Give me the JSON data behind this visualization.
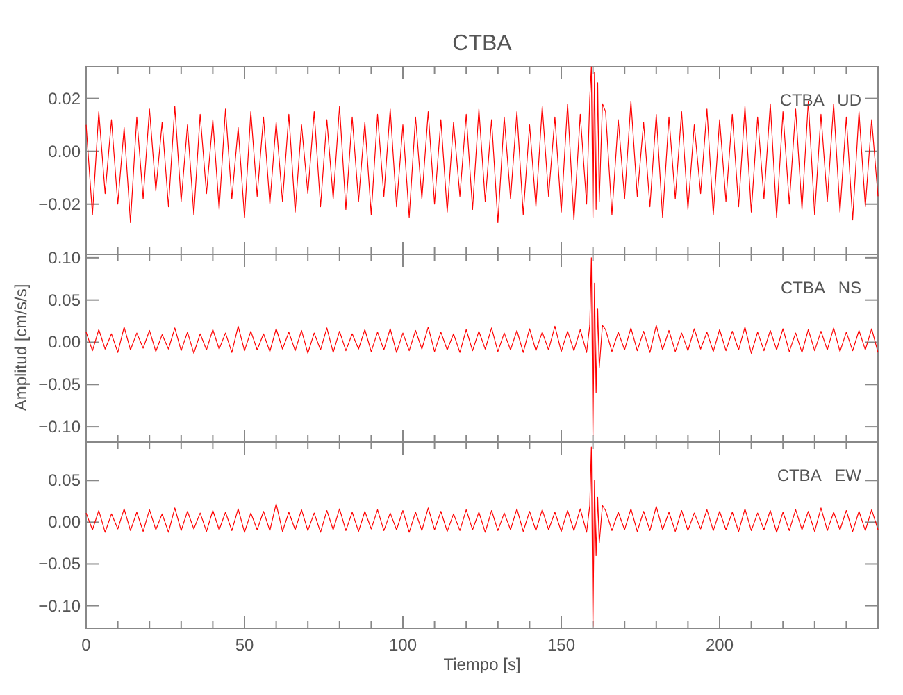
{
  "chart_data": [
    {
      "type": "line",
      "title": "CTBA",
      "annotations": [
        "CTBA   UD"
      ],
      "tick_labels": "y",
      "xlim": [
        0,
        250
      ],
      "xticks": [
        0,
        50,
        100,
        150,
        200
      ],
      "ylim": [
        -0.039,
        0.032
      ],
      "yticks": [
        {
          "value": 0.02,
          "label": "0.02"
        },
        {
          "value": 0,
          "label": "0.00"
        },
        {
          "value": -0.02,
          "label": "−0.02"
        }
      ],
      "x": [
        0,
        2,
        4,
        6,
        8,
        10,
        12,
        14,
        16,
        18,
        20,
        22,
        24,
        26,
        28,
        30,
        32,
        34,
        36,
        38,
        40,
        42,
        44,
        46,
        48,
        50,
        52,
        54,
        56,
        58,
        60,
        62,
        64,
        66,
        68,
        70,
        72,
        74,
        76,
        78,
        80,
        82,
        84,
        86,
        88,
        90,
        92,
        94,
        96,
        98,
        100,
        102,
        104,
        106,
        108,
        110,
        112,
        114,
        116,
        118,
        120,
        122,
        124,
        126,
        128,
        130,
        132,
        134,
        136,
        138,
        140,
        142,
        144,
        146,
        148,
        150,
        152,
        154,
        156,
        158,
        159,
        159.5,
        160,
        160.5,
        161,
        161.5,
        162,
        163,
        164,
        166,
        168,
        170,
        172,
        174,
        176,
        178,
        180,
        182,
        184,
        186,
        188,
        190,
        192,
        194,
        196,
        198,
        200,
        202,
        204,
        206,
        208,
        210,
        212,
        214,
        216,
        218,
        220,
        222,
        224,
        226,
        228,
        230,
        232,
        234,
        236,
        238,
        240,
        242,
        244,
        246,
        248,
        250
      ],
      "series": [
        {
          "color": "#ff0000",
          "values": [
            0.01,
            -0.024,
            0.015,
            -0.016,
            0.012,
            -0.02,
            0.009,
            -0.027,
            0.013,
            -0.018,
            0.016,
            -0.015,
            0.011,
            -0.021,
            0.017,
            -0.019,
            0.01,
            -0.024,
            0.014,
            -0.016,
            0.012,
            -0.022,
            0.016,
            -0.018,
            0.009,
            -0.025,
            0.015,
            -0.017,
            0.013,
            -0.02,
            0.011,
            -0.019,
            0.014,
            -0.023,
            0.01,
            -0.016,
            0.015,
            -0.021,
            0.012,
            -0.018,
            0.017,
            -0.022,
            0.013,
            -0.019,
            0.011,
            -0.024,
            0.014,
            -0.017,
            0.016,
            -0.021,
            0.01,
            -0.025,
            0.013,
            -0.018,
            0.015,
            -0.02,
            0.012,
            -0.023,
            0.011,
            -0.017,
            0.014,
            -0.022,
            0.016,
            -0.019,
            0.012,
            -0.027,
            0.013,
            -0.018,
            0.015,
            -0.024,
            0.01,
            -0.021,
            0.017,
            -0.017,
            0.013,
            -0.023,
            0.018,
            -0.026,
            0.014,
            -0.02,
            0.02,
            0.032,
            -0.025,
            0.03,
            -0.022,
            0.026,
            -0.019,
            0.018,
            0.015,
            -0.024,
            0.012,
            -0.018,
            0.019,
            -0.017,
            0.011,
            -0.021,
            0.014,
            -0.025,
            0.013,
            -0.018,
            0.015,
            -0.022,
            0.01,
            -0.016,
            0.016,
            -0.024,
            0.012,
            -0.019,
            0.014,
            -0.021,
            0.017,
            -0.023,
            0.013,
            -0.018,
            0.018,
            -0.025,
            0.015,
            -0.02,
            0.016,
            -0.022,
            0.019,
            -0.024,
            0.014,
            -0.019,
            0.018,
            -0.023,
            0.013,
            -0.026,
            0.015,
            -0.021,
            0.012,
            -0.017
          ]
        }
      ]
    },
    {
      "type": "line",
      "ylabel": "Amplitud [cm/s/s]",
      "annotations": [
        "CTBA   NS"
      ],
      "tick_labels": "y",
      "xlim": [
        0,
        250
      ],
      "xticks": [
        0,
        50,
        100,
        150,
        200
      ],
      "ylim": [
        -0.118,
        0.104
      ],
      "yticks": [
        {
          "value": 0.1,
          "label": "0.10"
        },
        {
          "value": 0.05,
          "label": "0.05"
        },
        {
          "value": 0,
          "label": "0.00"
        },
        {
          "value": -0.05,
          "label": "−0.05"
        },
        {
          "value": -0.1,
          "label": "−0.10"
        }
      ],
      "x": [
        0,
        2,
        4,
        6,
        8,
        10,
        12,
        14,
        16,
        18,
        20,
        22,
        24,
        26,
        28,
        30,
        32,
        34,
        36,
        38,
        40,
        42,
        44,
        46,
        48,
        50,
        52,
        54,
        56,
        58,
        60,
        62,
        64,
        66,
        68,
        70,
        72,
        74,
        76,
        78,
        80,
        82,
        84,
        86,
        88,
        90,
        92,
        94,
        96,
        98,
        100,
        102,
        104,
        106,
        108,
        110,
        112,
        114,
        116,
        118,
        120,
        122,
        124,
        126,
        128,
        130,
        132,
        134,
        136,
        138,
        140,
        142,
        144,
        146,
        148,
        150,
        152,
        154,
        156,
        158,
        159,
        159.5,
        160,
        160.5,
        161,
        161.5,
        162,
        163,
        164,
        166,
        168,
        170,
        172,
        174,
        176,
        178,
        180,
        182,
        184,
        186,
        188,
        190,
        192,
        194,
        196,
        198,
        200,
        202,
        204,
        206,
        208,
        210,
        212,
        214,
        216,
        218,
        220,
        222,
        224,
        226,
        228,
        230,
        232,
        234,
        236,
        238,
        240,
        242,
        244,
        246,
        248,
        250
      ],
      "series": [
        {
          "color": "#ff0000",
          "values": [
            0.012,
            -0.01,
            0.015,
            -0.008,
            0.01,
            -0.012,
            0.018,
            -0.009,
            0.011,
            -0.007,
            0.014,
            -0.011,
            0.009,
            -0.008,
            0.017,
            -0.01,
            0.012,
            -0.013,
            0.01,
            -0.009,
            0.015,
            -0.008,
            0.011,
            -0.012,
            0.019,
            -0.01,
            0.013,
            -0.009,
            0.01,
            -0.011,
            0.016,
            -0.008,
            0.012,
            -0.01,
            0.014,
            -0.013,
            0.011,
            -0.009,
            0.017,
            -0.012,
            0.013,
            -0.01,
            0.01,
            -0.008,
            0.015,
            -0.011,
            0.012,
            -0.009,
            0.016,
            -0.012,
            0.011,
            -0.01,
            0.014,
            -0.008,
            0.018,
            -0.011,
            0.012,
            -0.009,
            0.01,
            -0.012,
            0.015,
            -0.01,
            0.013,
            -0.008,
            0.017,
            -0.011,
            0.011,
            -0.009,
            0.014,
            -0.012,
            0.016,
            -0.01,
            0.012,
            -0.009,
            0.019,
            -0.011,
            0.013,
            -0.01,
            0.015,
            -0.012,
            0.02,
            0.1,
            -0.11,
            0.07,
            -0.06,
            0.04,
            -0.03,
            0.02,
            0.015,
            -0.011,
            0.012,
            -0.009,
            0.017,
            -0.01,
            0.013,
            -0.012,
            0.02,
            -0.009,
            0.014,
            -0.011,
            0.011,
            -0.01,
            0.016,
            -0.008,
            0.012,
            -0.011,
            0.015,
            -0.01,
            0.013,
            -0.009,
            0.018,
            -0.013,
            0.012,
            -0.01,
            0.014,
            -0.009,
            0.016,
            -0.011,
            0.011,
            -0.012,
            0.015,
            -0.01,
            0.013,
            -0.009,
            0.017,
            -0.011,
            0.012,
            -0.01,
            0.014,
            -0.009,
            0.016,
            -0.012
          ]
        }
      ]
    },
    {
      "type": "line",
      "xlabel": "Tiempo [s]",
      "annotations": [
        "CTBA   EW"
      ],
      "xlim": [
        0,
        250
      ],
      "xticks": [
        0,
        50,
        100,
        150,
        200
      ],
      "ylim": [
        -0.127,
        0.096
      ],
      "yticks": [
        {
          "value": 0.05,
          "label": "0.05"
        },
        {
          "value": 0,
          "label": "0.00"
        },
        {
          "value": -0.05,
          "label": "−0.05"
        },
        {
          "value": -0.1,
          "label": "−0.10"
        }
      ],
      "x": [
        0,
        2,
        4,
        6,
        8,
        10,
        12,
        14,
        16,
        18,
        20,
        22,
        24,
        26,
        28,
        30,
        32,
        34,
        36,
        38,
        40,
        42,
        44,
        46,
        48,
        50,
        52,
        54,
        56,
        58,
        60,
        62,
        64,
        66,
        68,
        70,
        72,
        74,
        76,
        78,
        80,
        82,
        84,
        86,
        88,
        90,
        92,
        94,
        96,
        98,
        100,
        102,
        104,
        106,
        108,
        110,
        112,
        114,
        116,
        118,
        120,
        122,
        124,
        126,
        128,
        130,
        132,
        134,
        136,
        138,
        140,
        142,
        144,
        146,
        148,
        150,
        152,
        154,
        156,
        158,
        159,
        159.5,
        160,
        160.5,
        161,
        161.5,
        162,
        163,
        164,
        166,
        168,
        170,
        172,
        174,
        176,
        178,
        180,
        182,
        184,
        186,
        188,
        190,
        192,
        194,
        196,
        198,
        200,
        202,
        204,
        206,
        208,
        210,
        212,
        214,
        216,
        218,
        220,
        222,
        224,
        226,
        228,
        230,
        232,
        234,
        236,
        238,
        240,
        242,
        244,
        246,
        248,
        250
      ],
      "series": [
        {
          "color": "#ff0000",
          "values": [
            0.011,
            -0.009,
            0.014,
            -0.012,
            0.01,
            -0.008,
            0.016,
            -0.01,
            0.012,
            -0.011,
            0.015,
            -0.009,
            0.01,
            -0.012,
            0.017,
            -0.01,
            0.013,
            -0.008,
            0.011,
            -0.011,
            0.014,
            -0.009,
            0.012,
            -0.01,
            0.016,
            -0.012,
            0.011,
            -0.009,
            0.013,
            -0.01,
            0.022,
            -0.011,
            0.012,
            -0.009,
            0.015,
            -0.01,
            0.011,
            -0.012,
            0.014,
            -0.009,
            0.016,
            -0.01,
            0.012,
            -0.011,
            0.013,
            -0.008,
            0.015,
            -0.01,
            0.011,
            -0.009,
            0.014,
            -0.012,
            0.012,
            -0.01,
            0.017,
            -0.009,
            0.013,
            -0.011,
            0.01,
            -0.01,
            0.015,
            -0.009,
            0.012,
            -0.012,
            0.014,
            -0.01,
            0.011,
            -0.009,
            0.016,
            -0.011,
            0.013,
            -0.01,
            0.015,
            -0.009,
            0.012,
            -0.011,
            0.014,
            -0.01,
            0.016,
            -0.012,
            0.02,
            0.09,
            -0.125,
            0.05,
            -0.04,
            0.03,
            -0.025,
            0.02,
            0.014,
            -0.01,
            0.012,
            -0.009,
            0.016,
            -0.011,
            0.013,
            -0.01,
            0.019,
            -0.009,
            0.012,
            -0.011,
            0.014,
            -0.01,
            0.011,
            -0.008,
            0.015,
            -0.01,
            0.013,
            -0.009,
            0.012,
            -0.011,
            0.016,
            -0.01,
            0.011,
            -0.009,
            0.014,
            -0.012,
            0.012,
            -0.01,
            0.015,
            -0.009,
            0.013,
            -0.011,
            0.017,
            -0.01,
            0.012,
            -0.009,
            0.014,
            -0.011,
            0.013,
            -0.01,
            0.015,
            -0.009
          ]
        }
      ]
    }
  ]
}
